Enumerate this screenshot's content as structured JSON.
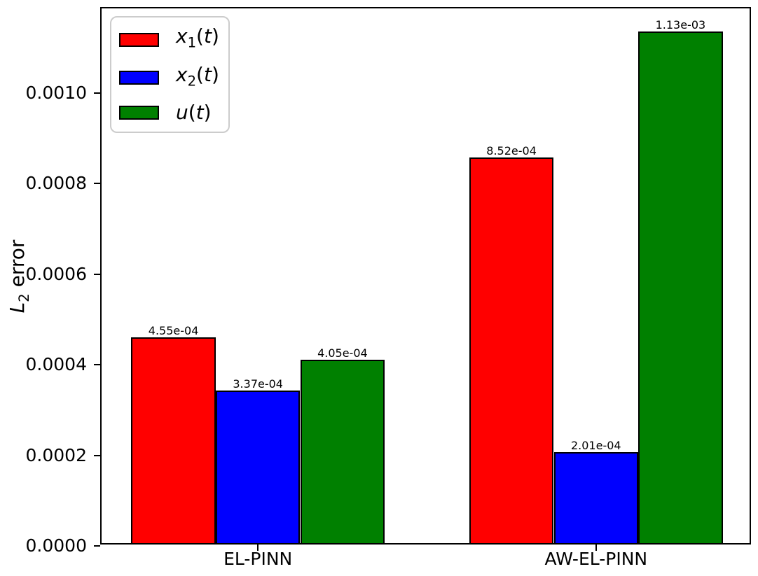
{
  "figure": {
    "background": "#ffffff"
  },
  "chart_data": {
    "type": "bar",
    "title": "",
    "xlabel": "",
    "ylabel": {
      "var": "L",
      "sub": "2",
      "rest": " error"
    },
    "categories": [
      "EL-PINN",
      "AW-EL-PINN"
    ],
    "series": [
      {
        "name": "x1(t)",
        "label": {
          "var": "x",
          "sub": "1",
          "arg": "t"
        },
        "color": "#ff0000",
        "values": [
          0.000455,
          0.000852
        ],
        "bar_labels": [
          "4.55e-04",
          "8.52e-04"
        ]
      },
      {
        "name": "x2(t)",
        "label": {
          "var": "x",
          "sub": "2",
          "arg": "t"
        },
        "color": "#0000ff",
        "values": [
          0.000337,
          0.000201
        ],
        "bar_labels": [
          "3.37e-04",
          "2.01e-04"
        ]
      },
      {
        "name": "u(t)",
        "label": {
          "var": "u",
          "sub": "",
          "arg": "t"
        },
        "color": "#008000",
        "values": [
          0.000405,
          0.00113
        ],
        "bar_labels": [
          "4.05e-04",
          "1.13e-03"
        ]
      }
    ],
    "ytick_labels": [
      "0.0000",
      "0.0002",
      "0.0004",
      "0.0006",
      "0.0008",
      "0.0010"
    ],
    "ytick_values": [
      0,
      0.0002,
      0.0004,
      0.0006,
      0.0008,
      0.001
    ],
    "ylim": [
      0,
      0.0011865
    ],
    "xlim": [
      -0.4625,
      1.4625
    ],
    "group_positions": [
      0,
      1
    ],
    "bar_width": 0.25,
    "bar_edge_color": "#000000",
    "grid": false,
    "legend": {
      "position": "upper-left",
      "edge_color": "#cccccc"
    }
  }
}
